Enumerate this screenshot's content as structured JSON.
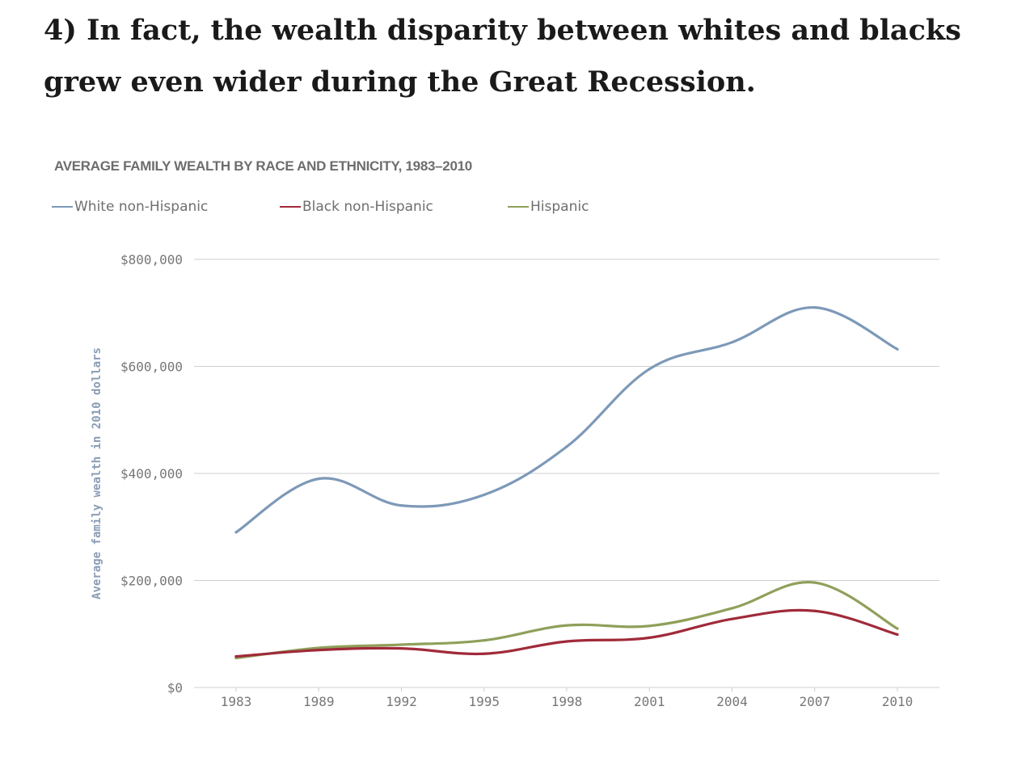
{
  "headline": "4) In fact, the wealth disparity between whites and blacks grew even wider during the Great Recession.",
  "chart_data": {
    "type": "line",
    "title": "AVERAGE FAMILY WEALTH BY RACE AND ETHNICITY, 1983–2010",
    "ylabel": "Average family wealth in 2010 dollars",
    "xlabel": "",
    "categories": [
      "1983",
      "1989",
      "1992",
      "1995",
      "1998",
      "2001",
      "2004",
      "2007",
      "2010"
    ],
    "ylim": [
      0,
      800000
    ],
    "yticks": [
      0,
      200000,
      400000,
      600000,
      800000
    ],
    "ytick_labels": [
      "$0",
      "$200,000",
      "$400,000",
      "$600,000",
      "$800,000"
    ],
    "grid": true,
    "legend_position": "top-left",
    "series": [
      {
        "name": "White non-Hispanic",
        "color": "#7d99b8",
        "values": [
          290000,
          390000,
          340000,
          360000,
          450000,
          595000,
          645000,
          710000,
          632000
        ]
      },
      {
        "name": "Black non-Hispanic",
        "color": "#a02a3a",
        "values": [
          58000,
          70000,
          73000,
          63000,
          86000,
          93000,
          128000,
          143000,
          99000
        ]
      },
      {
        "name": "Hispanic",
        "color": "#8fa05a",
        "values": [
          55000,
          74000,
          80000,
          88000,
          116000,
          115000,
          148000,
          196000,
          110000
        ]
      }
    ]
  }
}
